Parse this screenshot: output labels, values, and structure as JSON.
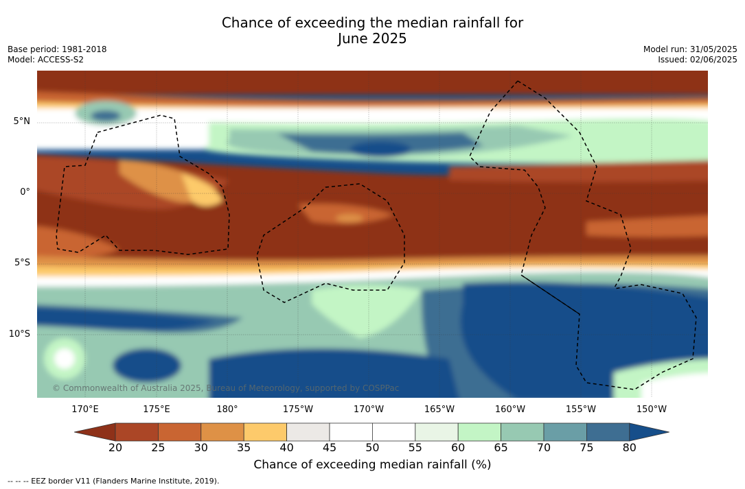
{
  "title": {
    "line1": "Chance of exceeding the median rainfall for",
    "line2": "June 2025"
  },
  "meta": {
    "base_period": "Base period: 1981-2018",
    "model": "Model: ACCESS-S2",
    "model_run": "Model run: 31/05/2025",
    "issued": "Issued: 02/06/2025"
  },
  "map": {
    "lat_labels": [
      "5°N",
      "0°",
      "5°S",
      "10°S"
    ],
    "lon_labels": [
      "170°E",
      "175°E",
      "180°",
      "175°W",
      "170°W",
      "165°W",
      "160°W",
      "155°W",
      "150°W"
    ],
    "copyright": "© Commonwealth of Australia 2025, Bureau of Meteorology, supported by COSPPac",
    "eez_legend": "--  --  -- EEZ border V11 (Flanders Marine Institute, 2019)."
  },
  "colorbar": {
    "ticks": [
      "20",
      "25",
      "30",
      "35",
      "40",
      "45",
      "50",
      "55",
      "60",
      "65",
      "70",
      "75",
      "80"
    ],
    "label": "Chance of exceeding median rainfall (%)",
    "colors": [
      "#8e3119",
      "#ab4626",
      "#c96532",
      "#de9146",
      "#fdca6b",
      "#ece9e6",
      "#ffffff",
      "#ffffff",
      "#e9f5e6",
      "#c3f5c5",
      "#97c9b2",
      "#6a9ea6",
      "#3e6e92",
      "#164e8a"
    ]
  }
}
